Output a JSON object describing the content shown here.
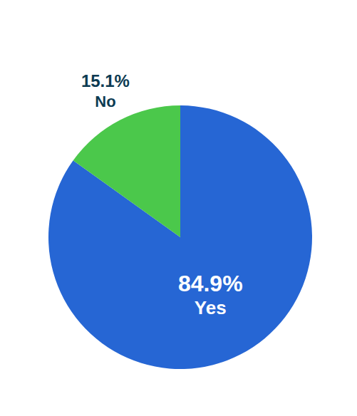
{
  "chart_data": {
    "type": "pie",
    "categories": [
      "Yes",
      "No"
    ],
    "values": [
      84.9,
      15.1
    ],
    "value_labels": [
      "84.9%",
      "15.1%"
    ],
    "colors": [
      "#2666d4",
      "#4bc84b"
    ],
    "data_labels": true
  }
}
